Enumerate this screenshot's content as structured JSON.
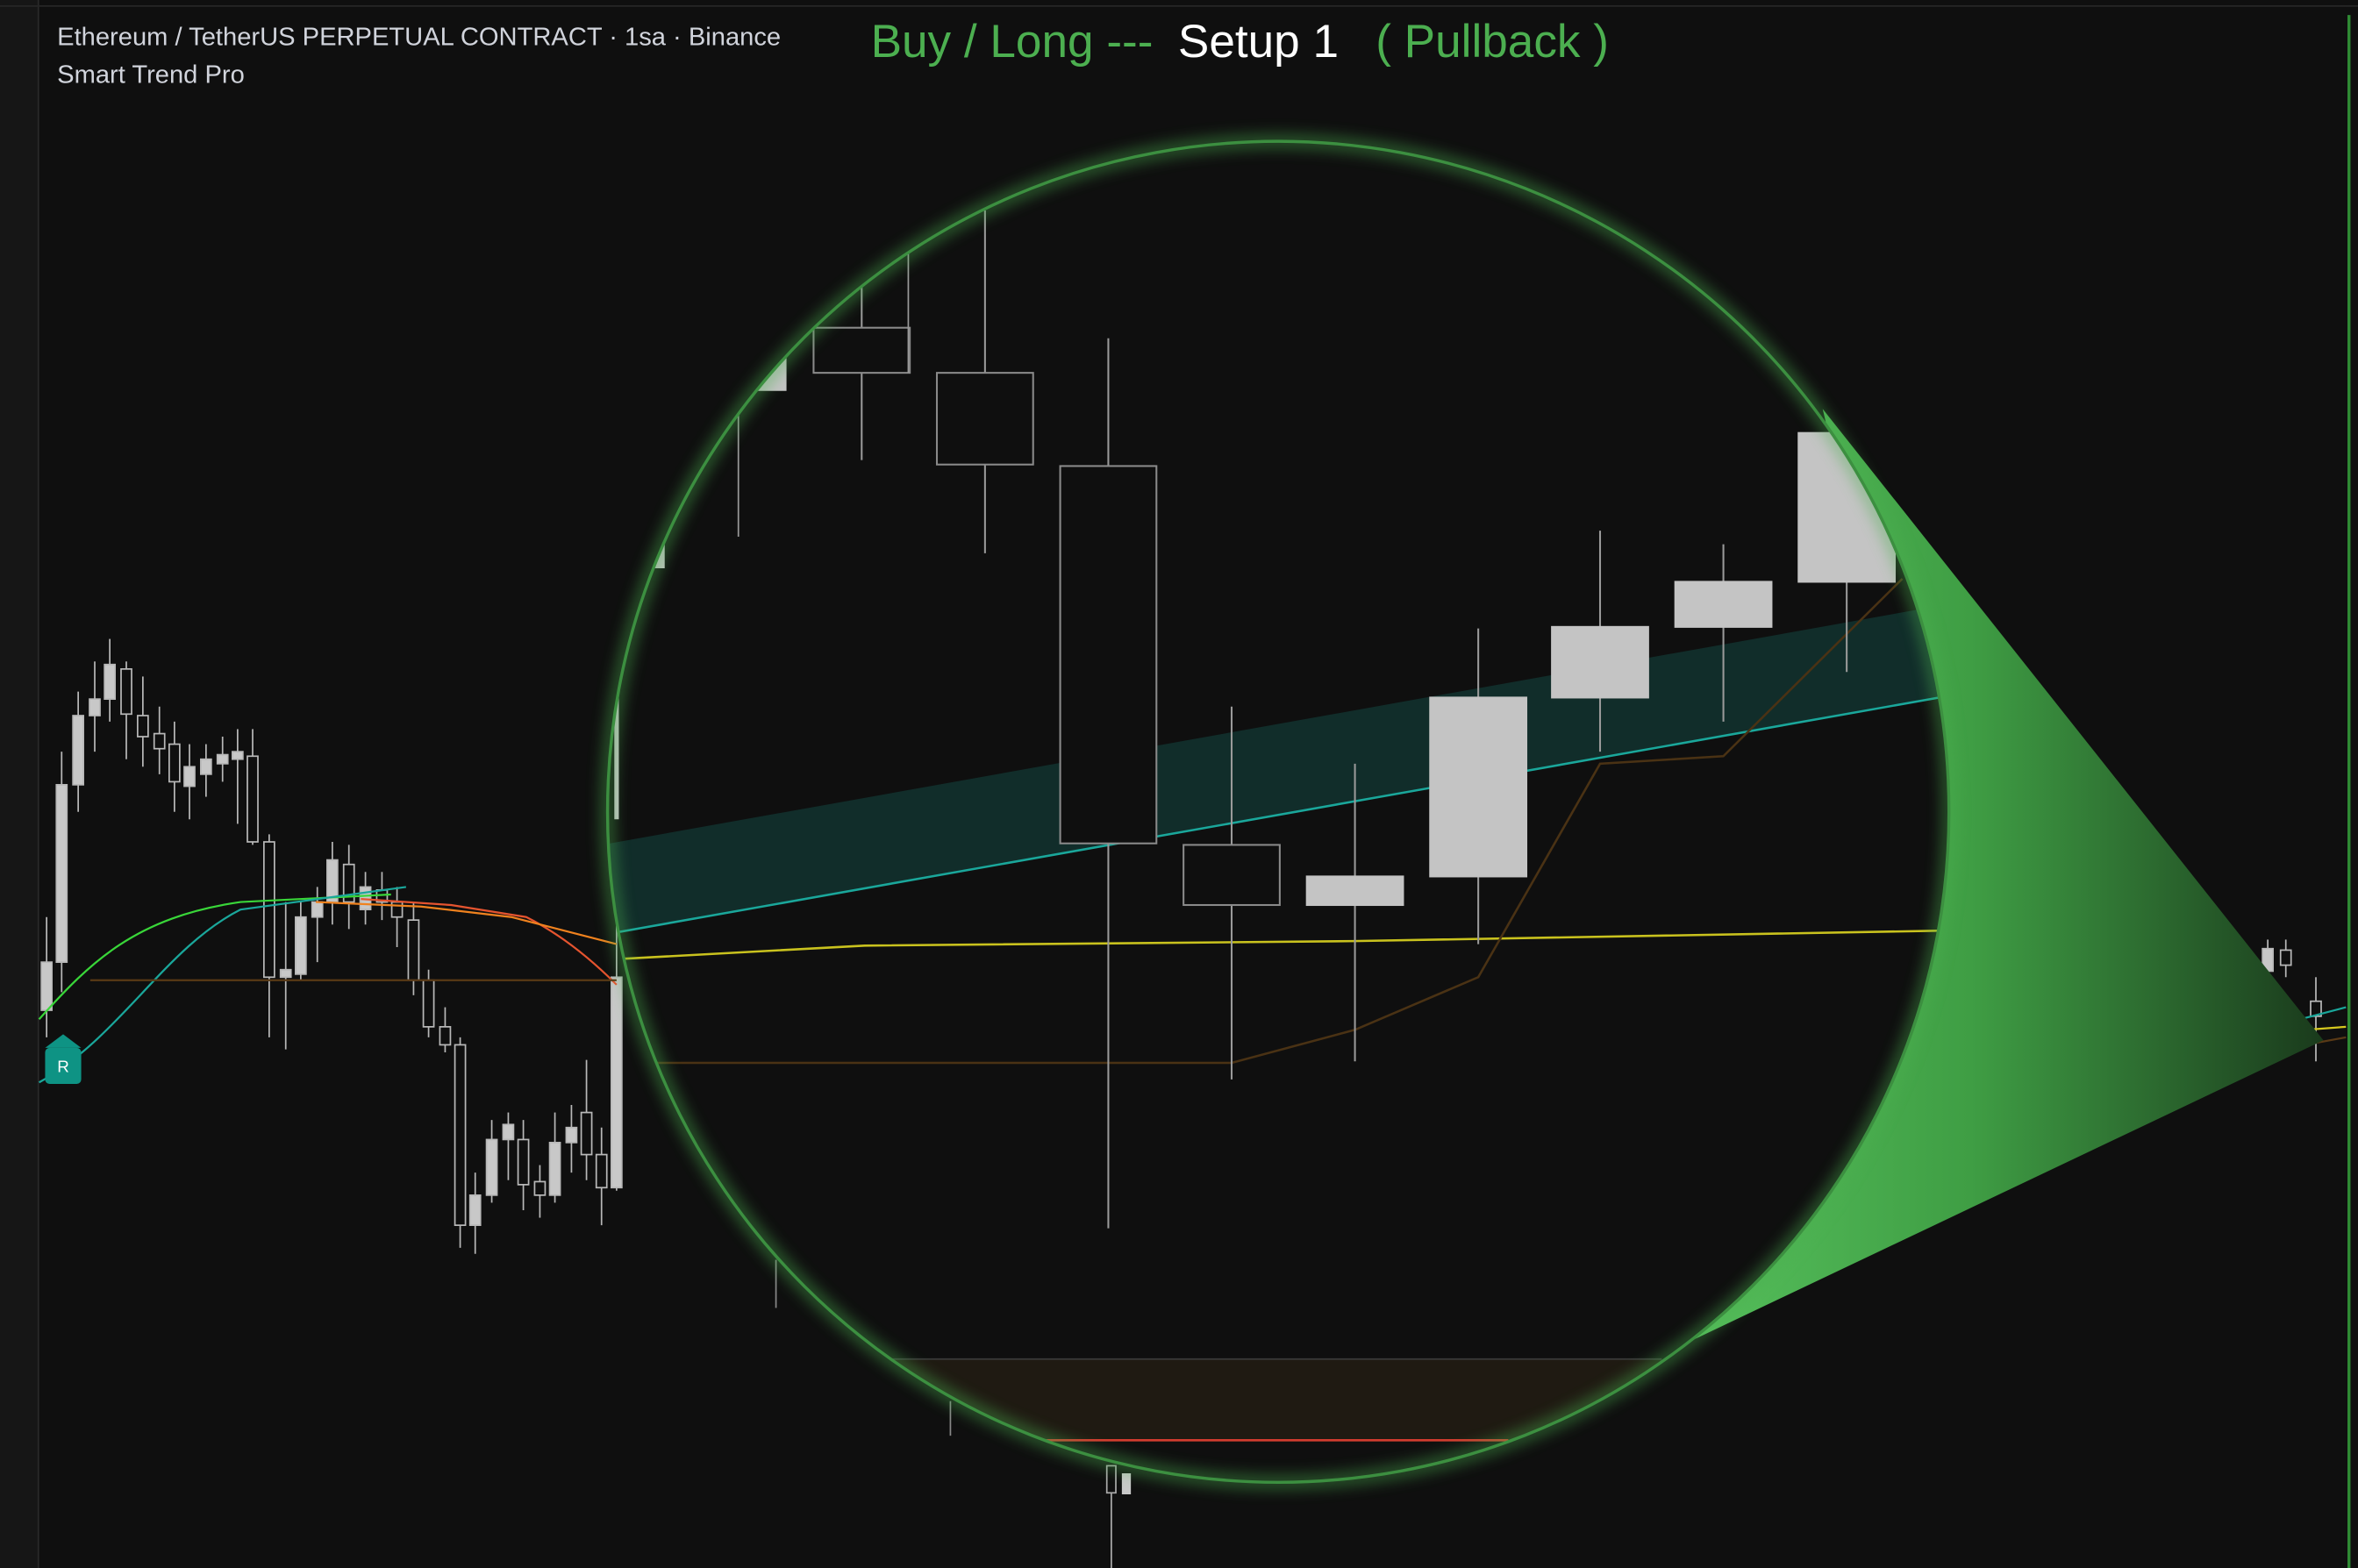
{
  "header": {
    "symbol": "Ethereum / TetherUS PERPETUAL CONTRACT · 1sa · Binance",
    "indicator": "Smart Trend Pro"
  },
  "signal": {
    "direction": "Buy / Long ---",
    "setup": "Setup 1",
    "type": "( Pullback )"
  },
  "marker": "R"
}
